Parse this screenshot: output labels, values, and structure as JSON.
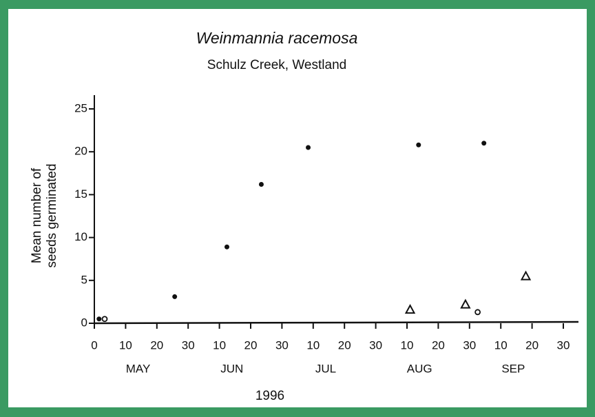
{
  "chart_data": {
    "type": "scatter",
    "title": "Weinmannia racemosa",
    "subtitle": "Schulz Creek, Westland",
    "y_label": [
      "Mean number of",
      "seeds germinated"
    ],
    "x_label": "1996",
    "months": [
      "MAY",
      "JUN",
      "JUL",
      "AUG",
      "SEP"
    ],
    "xlim": [
      0,
      150
    ],
    "xticks": [
      0,
      {
        "value": 10,
        "label": "10"
      },
      {
        "value": 20,
        "label": "20"
      },
      {
        "value": 30,
        "label": "30"
      },
      {
        "value": 40,
        "label": "10"
      },
      {
        "value": 50,
        "label": "20"
      },
      {
        "value": 60,
        "label": "30"
      },
      {
        "value": 70,
        "label": "10"
      },
      {
        "value": 80,
        "label": "20"
      },
      {
        "value": 90,
        "label": "30"
      },
      {
        "value": 100,
        "label": "10"
      },
      {
        "value": 110,
        "label": "20"
      },
      {
        "value": 120,
        "label": "30"
      },
      {
        "value": 130,
        "label": "10"
      },
      {
        "value": 140,
        "label": "20"
      },
      {
        "value": 150,
        "label": "30"
      }
    ],
    "ylim": [
      0,
      25
    ],
    "yticks": [
      0,
      5,
      10,
      15,
      20,
      25
    ],
    "series": [
      {
        "marker": "dot",
        "color": "#111111",
        "x": [
          1.5,
          25.7,
          42.4,
          53.4,
          68.4,
          103.7,
          124.6
        ],
        "values": [
          0.5,
          3.1,
          8.9,
          16.2,
          20.5,
          20.8,
          21.0
        ]
      },
      {
        "marker": "circle",
        "color": "#111111",
        "x": [
          3.3,
          122.6
        ],
        "values": [
          0.5,
          1.3
        ]
      },
      {
        "marker": "triangle",
        "color": "#111111",
        "x": [
          101,
          118.7,
          138
        ],
        "values": [
          1.6,
          2.2,
          5.5
        ]
      }
    ]
  }
}
